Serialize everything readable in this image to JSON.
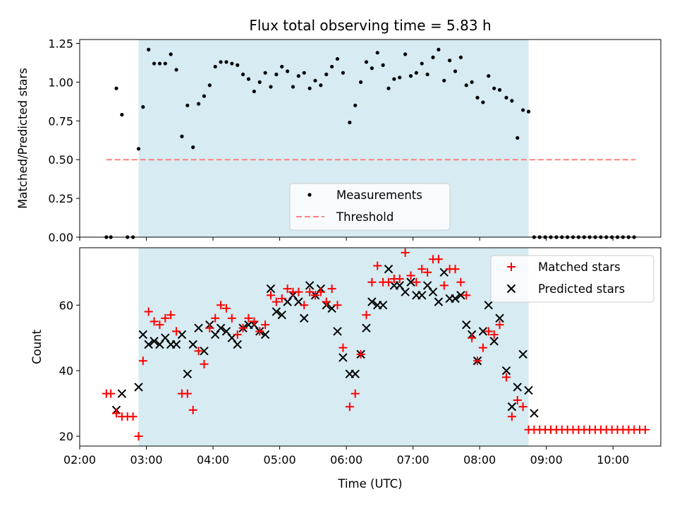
{
  "chart_data": {
    "title": "Flux total observing time = 5.83 h",
    "xlabel": "Time (UTC)",
    "x_ticks": [
      "02:00",
      "03:00",
      "04:00",
      "05:00",
      "06:00",
      "07:00",
      "08:00",
      "09:00",
      "10:00"
    ],
    "xlim": [
      "02:00",
      "10:43"
    ],
    "shaded_interval": [
      "02:53",
      "08:44"
    ],
    "colors": {
      "shade": "#add8e6",
      "matched": "#ff0000",
      "predicted": "#000000",
      "threshold": "#ff8080",
      "measurement": "#000000"
    },
    "top": {
      "type": "scatter",
      "ylabel": "Matched/Predicted stars",
      "ylim": [
        0,
        1.275
      ],
      "y_ticks": [
        "0.00",
        "0.25",
        "0.50",
        "0.75",
        "1.00",
        "1.25"
      ],
      "legend": {
        "position": "bottom-center",
        "entries": [
          "Measurements",
          "Threshold"
        ]
      },
      "threshold": {
        "value": 0.5,
        "x_range": [
          "02:24",
          "10:20"
        ]
      },
      "measurements": [
        [
          "02:24",
          0.0
        ],
        [
          "02:28",
          0.0
        ],
        [
          "02:33",
          0.96
        ],
        [
          "02:38",
          0.79
        ],
        [
          "02:43",
          0.0
        ],
        [
          "02:48",
          0.0
        ],
        [
          "02:53",
          0.57
        ],
        [
          "02:57",
          0.84
        ],
        [
          "03:02",
          1.21
        ],
        [
          "03:07",
          1.12
        ],
        [
          "03:12",
          1.12
        ],
        [
          "03:17",
          1.12
        ],
        [
          "03:22",
          1.18
        ],
        [
          "03:27",
          1.08
        ],
        [
          "03:32",
          0.65
        ],
        [
          "03:37",
          0.85
        ],
        [
          "03:42",
          0.58
        ],
        [
          "03:47",
          0.86
        ],
        [
          "03:52",
          0.91
        ],
        [
          "03:57",
          0.98
        ],
        [
          "04:02",
          1.1
        ],
        [
          "04:07",
          1.13
        ],
        [
          "04:12",
          1.13
        ],
        [
          "04:17",
          1.12
        ],
        [
          "04:22",
          1.11
        ],
        [
          "04:27",
          1.05
        ],
        [
          "04:32",
          1.02
        ],
        [
          "04:37",
          0.94
        ],
        [
          "04:42",
          1.0
        ],
        [
          "04:47",
          1.06
        ],
        [
          "04:52",
          0.97
        ],
        [
          "04:57",
          1.05
        ],
        [
          "05:02",
          1.1
        ],
        [
          "05:07",
          1.07
        ],
        [
          "05:12",
          0.97
        ],
        [
          "05:17",
          1.04
        ],
        [
          "05:22",
          1.06
        ],
        [
          "05:27",
          0.96
        ],
        [
          "05:32",
          1.01
        ],
        [
          "05:37",
          0.98
        ],
        [
          "05:42",
          1.05
        ],
        [
          "05:47",
          1.1
        ],
        [
          "05:52",
          1.15
        ],
        [
          "05:57",
          1.06
        ],
        [
          "06:03",
          0.74
        ],
        [
          "06:08",
          0.85
        ],
        [
          "06:13",
          1.0
        ],
        [
          "06:18",
          1.13
        ],
        [
          "06:23",
          1.09
        ],
        [
          "06:28",
          1.19
        ],
        [
          "06:33",
          1.11
        ],
        [
          "06:38",
          0.96
        ],
        [
          "06:43",
          1.02
        ],
        [
          "06:48",
          1.03
        ],
        [
          "06:53",
          1.18
        ],
        [
          "06:58",
          1.04
        ],
        [
          "07:03",
          1.06
        ],
        [
          "07:08",
          1.12
        ],
        [
          "07:13",
          1.05
        ],
        [
          "07:18",
          1.16
        ],
        [
          "07:23",
          1.21
        ],
        [
          "07:28",
          1.01
        ],
        [
          "07:33",
          1.14
        ],
        [
          "07:38",
          1.07
        ],
        [
          "07:43",
          1.16
        ],
        [
          "07:48",
          0.98
        ],
        [
          "07:53",
          1.0
        ],
        [
          "07:58",
          0.9
        ],
        [
          "08:03",
          0.87
        ],
        [
          "08:08",
          1.04
        ],
        [
          "08:13",
          0.96
        ],
        [
          "08:18",
          0.95
        ],
        [
          "08:24",
          0.9
        ],
        [
          "08:29",
          0.88
        ],
        [
          "08:34",
          0.64
        ],
        [
          "08:39",
          0.82
        ],
        [
          "08:44",
          0.81
        ],
        [
          "08:49",
          0.0
        ],
        [
          "08:54",
          0.0
        ],
        [
          "08:59",
          0.0
        ],
        [
          "09:04",
          0.0
        ],
        [
          "09:09",
          0.0
        ],
        [
          "09:14",
          0.0
        ],
        [
          "09:19",
          0.0
        ],
        [
          "09:24",
          0.0
        ],
        [
          "09:29",
          0.0
        ],
        [
          "09:34",
          0.0
        ],
        [
          "09:39",
          0.0
        ],
        [
          "09:44",
          0.0
        ],
        [
          "09:49",
          0.0
        ],
        [
          "09:54",
          0.0
        ],
        [
          "09:59",
          0.0
        ],
        [
          "10:04",
          0.0
        ],
        [
          "10:09",
          0.0
        ],
        [
          "10:14",
          0.0
        ],
        [
          "10:19",
          0.0
        ]
      ]
    },
    "bottom": {
      "type": "scatter",
      "ylabel": "Count",
      "ylim": [
        17,
        77.5
      ],
      "y_ticks": [
        "20",
        "40",
        "60"
      ],
      "legend": {
        "position": "top-right",
        "entries": [
          "Matched stars",
          "Predicted stars"
        ]
      },
      "matched": [
        [
          "02:24",
          33
        ],
        [
          "02:28",
          33
        ],
        [
          "02:33",
          27
        ],
        [
          "02:38",
          26
        ],
        [
          "02:43",
          26
        ],
        [
          "02:48",
          26
        ],
        [
          "02:53",
          20
        ],
        [
          "02:57",
          43
        ],
        [
          "03:02",
          58
        ],
        [
          "03:07",
          55
        ],
        [
          "03:12",
          54
        ],
        [
          "03:17",
          56
        ],
        [
          "03:22",
          57
        ],
        [
          "03:27",
          52
        ],
        [
          "03:32",
          33
        ],
        [
          "03:37",
          33
        ],
        [
          "03:42",
          28
        ],
        [
          "03:47",
          46
        ],
        [
          "03:52",
          42
        ],
        [
          "03:57",
          53
        ],
        [
          "04:02",
          56
        ],
        [
          "04:07",
          60
        ],
        [
          "04:12",
          59
        ],
        [
          "04:17",
          56
        ],
        [
          "04:22",
          51
        ],
        [
          "04:27",
          53
        ],
        [
          "04:32",
          56
        ],
        [
          "04:37",
          55
        ],
        [
          "04:42",
          52
        ],
        [
          "04:47",
          54
        ],
        [
          "04:52",
          63
        ],
        [
          "04:57",
          61
        ],
        [
          "05:02",
          62
        ],
        [
          "05:07",
          65
        ],
        [
          "05:12",
          64
        ],
        [
          "05:17",
          64
        ],
        [
          "05:22",
          60
        ],
        [
          "05:27",
          64
        ],
        [
          "05:32",
          63
        ],
        [
          "05:37",
          64
        ],
        [
          "05:42",
          61
        ],
        [
          "05:47",
          65
        ],
        [
          "05:52",
          60
        ],
        [
          "05:57",
          47
        ],
        [
          "06:03",
          29
        ],
        [
          "06:08",
          33
        ],
        [
          "06:13",
          45
        ],
        [
          "06:18",
          57
        ],
        [
          "06:23",
          67
        ],
        [
          "06:28",
          72
        ],
        [
          "06:33",
          67
        ],
        [
          "06:38",
          67
        ],
        [
          "06:43",
          68
        ],
        [
          "06:48",
          68
        ],
        [
          "06:53",
          76
        ],
        [
          "06:58",
          69
        ],
        [
          "07:03",
          67
        ],
        [
          "07:08",
          71
        ],
        [
          "07:13",
          70
        ],
        [
          "07:18",
          74
        ],
        [
          "07:23",
          74
        ],
        [
          "07:28",
          66
        ],
        [
          "07:33",
          71
        ],
        [
          "07:38",
          71
        ],
        [
          "07:43",
          67
        ],
        [
          "07:48",
          63
        ],
        [
          "07:53",
          50
        ],
        [
          "07:58",
          43
        ],
        [
          "08:03",
          47
        ],
        [
          "08:08",
          52
        ],
        [
          "08:13",
          51
        ],
        [
          "08:18",
          54
        ],
        [
          "08:24",
          38
        ],
        [
          "08:29",
          26
        ],
        [
          "08:34",
          31
        ],
        [
          "08:39",
          29
        ],
        [
          "08:44",
          22
        ],
        [
          "08:49",
          22
        ],
        [
          "08:54",
          22
        ],
        [
          "08:59",
          22
        ],
        [
          "09:04",
          22
        ],
        [
          "09:09",
          22
        ],
        [
          "09:14",
          22
        ],
        [
          "09:19",
          22
        ],
        [
          "09:24",
          22
        ],
        [
          "09:29",
          22
        ],
        [
          "09:34",
          22
        ],
        [
          "09:39",
          22
        ],
        [
          "09:44",
          22
        ],
        [
          "09:49",
          22
        ],
        [
          "09:54",
          22
        ],
        [
          "09:59",
          22
        ],
        [
          "10:04",
          22
        ],
        [
          "10:09",
          22
        ],
        [
          "10:14",
          22
        ],
        [
          "10:19",
          22
        ],
        [
          "10:24",
          22
        ],
        [
          "10:29",
          22
        ]
      ],
      "predicted": [
        [
          "02:33",
          28
        ],
        [
          "02:38",
          33
        ],
        [
          "02:53",
          35
        ],
        [
          "02:57",
          51
        ],
        [
          "03:02",
          48
        ],
        [
          "03:07",
          49
        ],
        [
          "03:12",
          48
        ],
        [
          "03:17",
          50
        ],
        [
          "03:22",
          48
        ],
        [
          "03:27",
          48
        ],
        [
          "03:32",
          51
        ],
        [
          "03:37",
          39
        ],
        [
          "03:42",
          48
        ],
        [
          "03:47",
          53
        ],
        [
          "03:52",
          46
        ],
        [
          "03:57",
          54
        ],
        [
          "04:02",
          51
        ],
        [
          "04:07",
          53
        ],
        [
          "04:12",
          52
        ],
        [
          "04:17",
          50
        ],
        [
          "04:22",
          48
        ],
        [
          "04:27",
          53
        ],
        [
          "04:32",
          54
        ],
        [
          "04:37",
          54
        ],
        [
          "04:42",
          52
        ],
        [
          "04:47",
          51
        ],
        [
          "04:52",
          65
        ],
        [
          "04:57",
          58
        ],
        [
          "05:02",
          57
        ],
        [
          "05:07",
          61
        ],
        [
          "05:12",
          63
        ],
        [
          "05:17",
          61
        ],
        [
          "05:22",
          56
        ],
        [
          "05:27",
          66
        ],
        [
          "05:32",
          63
        ],
        [
          "05:37",
          65
        ],
        [
          "05:42",
          60
        ],
        [
          "05:47",
          59
        ],
        [
          "05:52",
          52
        ],
        [
          "05:57",
          44
        ],
        [
          "06:03",
          39
        ],
        [
          "06:08",
          39
        ],
        [
          "06:13",
          45
        ],
        [
          "06:18",
          53
        ],
        [
          "06:23",
          61
        ],
        [
          "06:28",
          60
        ],
        [
          "06:33",
          60
        ],
        [
          "06:38",
          71
        ],
        [
          "06:43",
          66
        ],
        [
          "06:48",
          66
        ],
        [
          "06:53",
          64
        ],
        [
          "06:58",
          67
        ],
        [
          "07:03",
          63
        ],
        [
          "07:08",
          63
        ],
        [
          "07:13",
          66
        ],
        [
          "07:18",
          64
        ],
        [
          "07:23",
          61
        ],
        [
          "07:28",
          70
        ],
        [
          "07:33",
          62
        ],
        [
          "07:38",
          62
        ],
        [
          "07:43",
          63
        ],
        [
          "07:48",
          54
        ],
        [
          "07:53",
          51
        ],
        [
          "07:58",
          43
        ],
        [
          "08:03",
          52
        ],
        [
          "08:08",
          60
        ],
        [
          "08:13",
          49
        ],
        [
          "08:18",
          56
        ],
        [
          "08:24",
          40
        ],
        [
          "08:29",
          29
        ],
        [
          "08:34",
          35
        ],
        [
          "08:39",
          45
        ],
        [
          "08:44",
          34
        ],
        [
          "08:49",
          27
        ]
      ]
    }
  }
}
